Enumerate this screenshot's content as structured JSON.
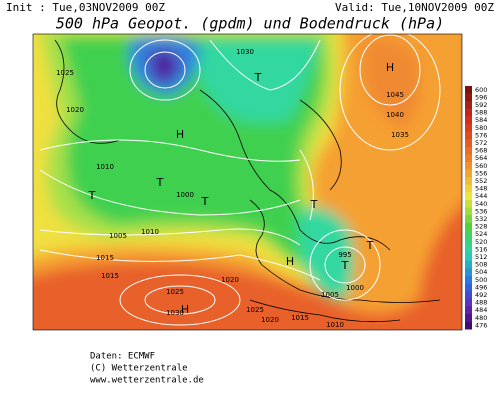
{
  "header": {
    "init": "Init : Tue,03NOV2009 00Z",
    "valid": "Valid: Tue,10NOV2009 00Z",
    "title": "500 hPa Geopot. (gpdm) und Bodendruck (hPa)"
  },
  "colorbar": {
    "labels": [
      600,
      596,
      592,
      588,
      584,
      580,
      576,
      572,
      568,
      564,
      560,
      556,
      552,
      548,
      544,
      540,
      536,
      532,
      528,
      524,
      520,
      516,
      512,
      508,
      504,
      500,
      496,
      492,
      488,
      484,
      480,
      476
    ]
  },
  "map": {
    "labels": [
      "H",
      "H",
      "H",
      "H",
      "T",
      "T",
      "T",
      "T",
      "T",
      "T",
      "T",
      "1010",
      "1015",
      "1020",
      "1025",
      "1030",
      "1000",
      "1005",
      "1010",
      "1015",
      "1020",
      "1025",
      "1030",
      "1045",
      "1040",
      "1035",
      "995",
      "1000",
      "1005",
      "1010",
      "1015",
      "1020",
      "1025"
    ]
  },
  "footer": {
    "lines": [
      "Daten: ECMWF",
      "(C) Wetterzentrale",
      "www.wetterzentrale.de"
    ]
  }
}
